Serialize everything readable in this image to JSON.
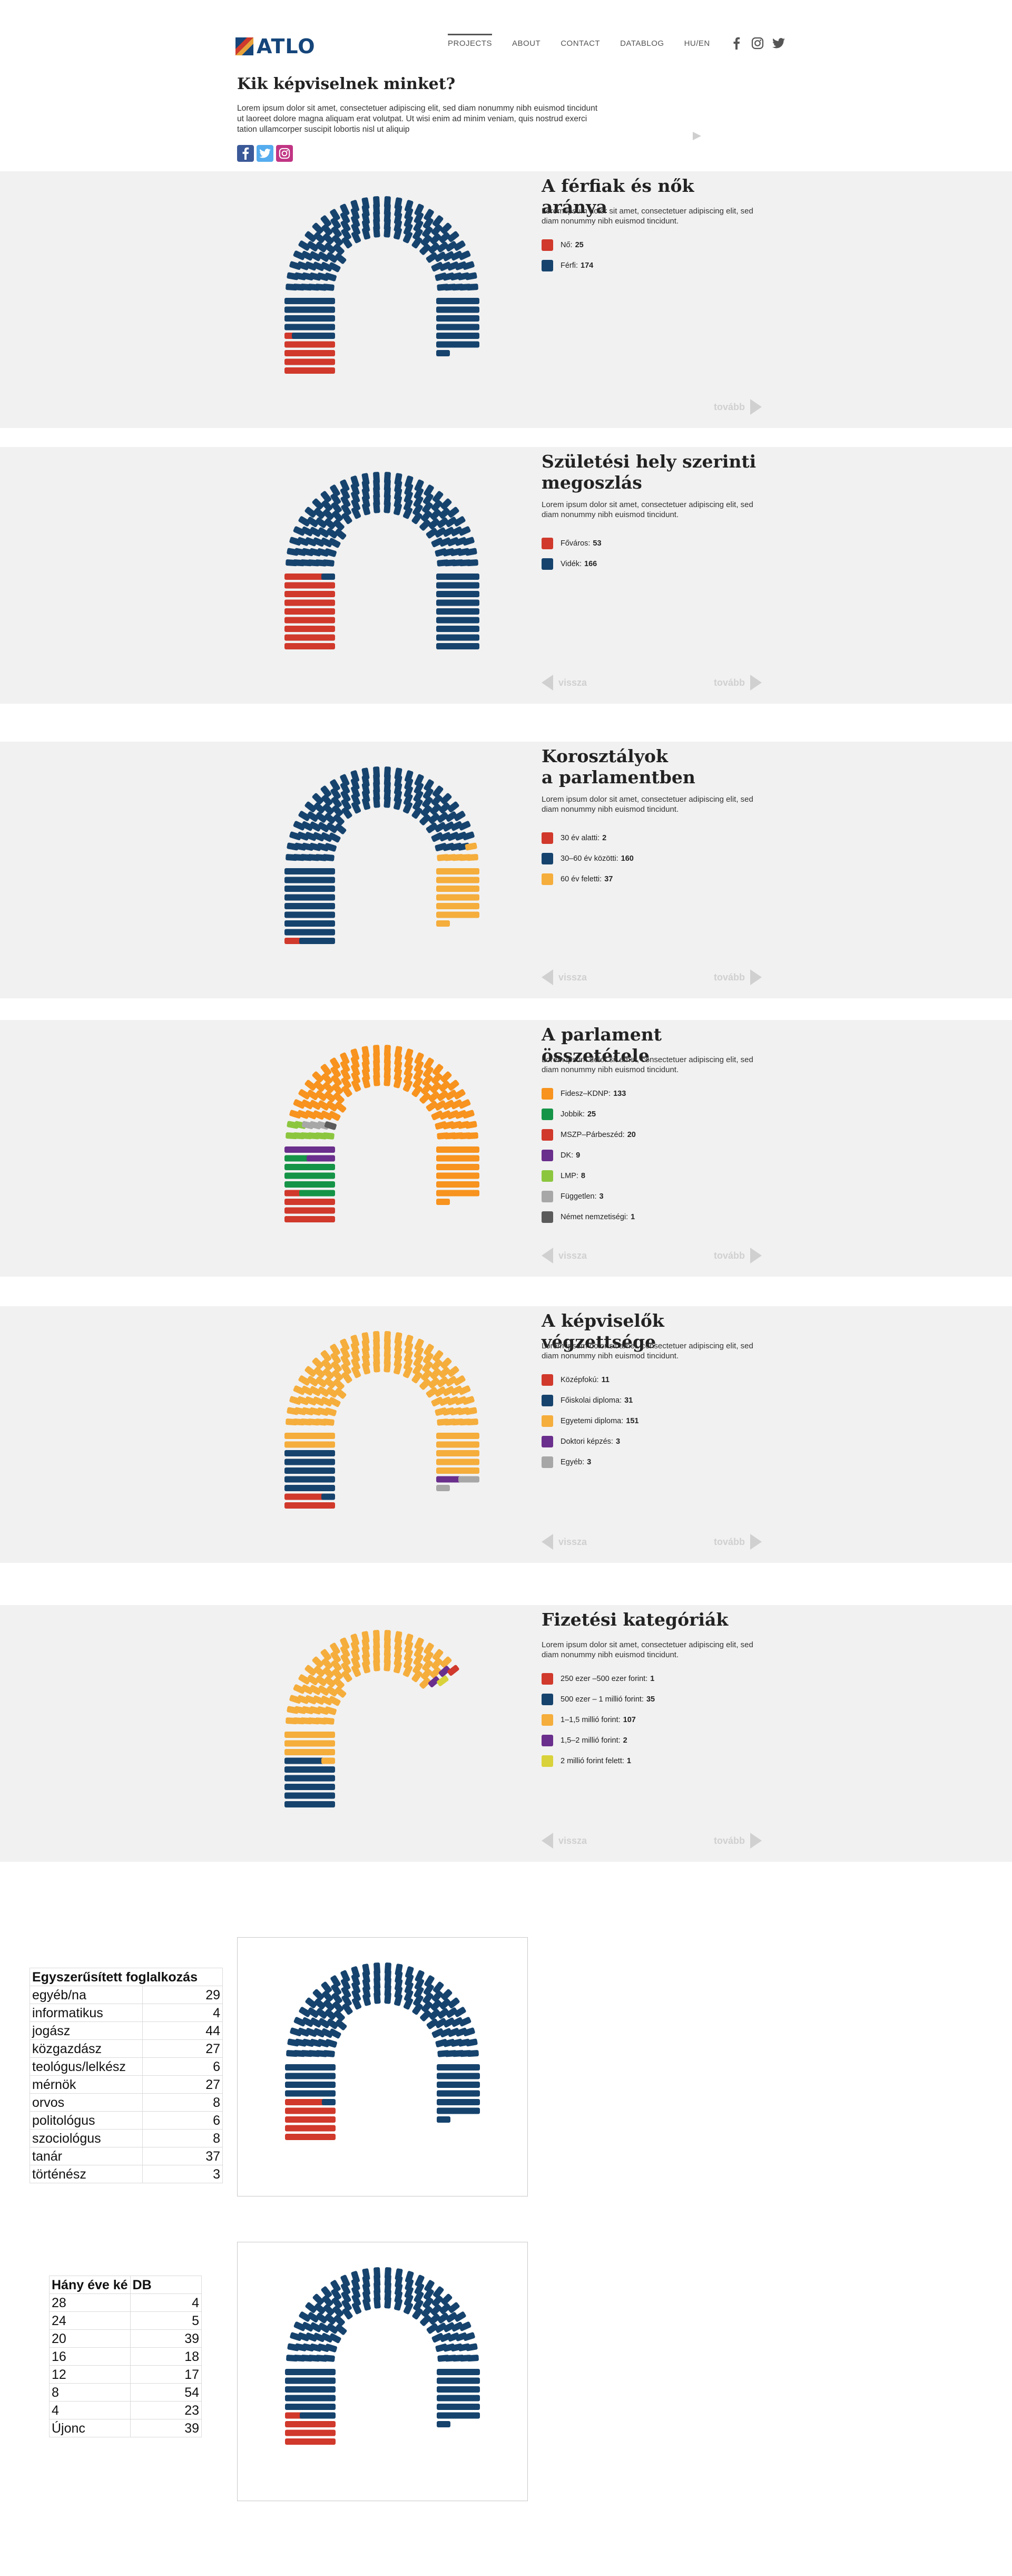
{
  "header": {
    "logo_text": "ATLO",
    "nav": [
      {
        "label": "PROJECTS",
        "active": true
      },
      {
        "label": "ABOUT",
        "active": false
      },
      {
        "label": "CONTACT",
        "active": false
      },
      {
        "label": "DATABLOG",
        "active": false
      },
      {
        "label": "HU/EN",
        "active": false
      }
    ],
    "social_icons": [
      "facebook-icon",
      "instagram-icon",
      "twitter-icon"
    ]
  },
  "page": {
    "title": "Kik képviselnek minket?",
    "intro": "Lorem ipsum dolor sit amet, consectetuer adipiscing elit, sed diam nonummy nibh euismod tincidunt ut laoreet dolore magna aliquam erat volutpat. Ut wisi enim ad minim veniam, quis nostrud exerci tation ullamcorper suscipit lobortis nisl ut aliquip",
    "share_icons": [
      "facebook-share-icon",
      "twitter-share-icon",
      "instagram-share-icon"
    ]
  },
  "sections": [
    {
      "title": "A férfiak és nők aránya",
      "description": "Lorem ipsum dolor sit amet, consectetuer adipiscing elit, sed diam nonummy nibh euismod tincidunt.",
      "next_label": "tovább",
      "legend": [
        {
          "label": "Nő:",
          "value": "25",
          "color": "#d0392b"
        },
        {
          "label": "Férfi:",
          "value": "174",
          "color": "#16436d"
        }
      ]
    },
    {
      "title": "Születési hely szerinti\nmegoszlás",
      "description": "Lorem ipsum dolor sit amet, consectetuer adipiscing elit, sed diam nonummy nibh euismod tincidunt.",
      "prev_label": "vissza",
      "next_label": "tovább",
      "legend": [
        {
          "label": "Főváros:",
          "value": "53",
          "color": "#d0392b"
        },
        {
          "label": "Vidék:",
          "value": "166",
          "color": "#16436d"
        }
      ]
    },
    {
      "title": "Korosztályok\na parlamentben",
      "description": "Lorem ipsum dolor sit amet, consectetuer adipiscing elit, sed diam nonummy nibh euismod tincidunt.",
      "prev_label": "vissza",
      "next_label": "tovább",
      "legend": [
        {
          "label": "30 év alatti:",
          "value": "2",
          "color": "#d0392b"
        },
        {
          "label": "30–60 év közötti:",
          "value": "160",
          "color": "#16436d"
        },
        {
          "label": "60 év feletti:",
          "value": "37",
          "color": "#f5ad3c"
        }
      ]
    },
    {
      "title": "A parlament összetétele",
      "description": "Lorem ipsum dolor sit amet, consectetuer adipiscing elit, sed diam nonummy nibh euismod tincidunt.",
      "prev_label": "vissza",
      "next_label": "tovább",
      "legend": [
        {
          "label": "Fidesz–KDNP:",
          "value": "133",
          "color": "#f7931e"
        },
        {
          "label": "Jobbik:",
          "value": "25",
          "color": "#159447"
        },
        {
          "label": "MSZP–Párbeszéd:",
          "value": "20",
          "color": "#d0392b"
        },
        {
          "label": "DK:",
          "value": "9",
          "color": "#6a2e8c"
        },
        {
          "label": "LMP:",
          "value": "8",
          "color": "#8cc63f"
        },
        {
          "label": "Független:",
          "value": "3",
          "color": "#a7a7a7"
        },
        {
          "label": "Német nemzetiségi:",
          "value": "1",
          "color": "#5b5b5b"
        }
      ]
    },
    {
      "title": "A képviselők végzettsége",
      "description": "Lorem ipsum dolor sit amet, consectetuer adipiscing elit, sed diam nonummy nibh euismod tincidunt.",
      "prev_label": "vissza",
      "next_label": "tovább",
      "legend": [
        {
          "label": "Középfokú:",
          "value": "11",
          "color": "#d0392b"
        },
        {
          "label": "Főiskolai diploma:",
          "value": "31",
          "color": "#16436d"
        },
        {
          "label": "Egyetemi diploma:",
          "value": "151",
          "color": "#f5ad3c"
        },
        {
          "label": "Doktori képzés:",
          "value": "3",
          "color": "#6a2e8c"
        },
        {
          "label": "Egyéb:",
          "value": "3",
          "color": "#a7a7a7"
        }
      ]
    },
    {
      "title": "Fizetési kategóriák",
      "description": "Lorem ipsum dolor sit amet, consectetuer adipiscing elit, sed diam nonummy nibh euismod tincidunt.",
      "prev_label": "vissza",
      "next_label": "tovább",
      "legend": [
        {
          "label": "250 ezer –500 ezer forint:",
          "value": "1",
          "color": "#d0392b"
        },
        {
          "label": "500 ezer – 1 millió forint:",
          "value": "35",
          "color": "#16436d"
        },
        {
          "label": "1–1,5 millió forint:",
          "value": "107",
          "color": "#f5ad3c"
        },
        {
          "label": "1,5–2 millió forint:",
          "value": "2",
          "color": "#6a2e8c"
        },
        {
          "label": "2 millió forint felett:",
          "value": "1",
          "color": "#d9d23a"
        }
      ]
    }
  ],
  "chart_data": [
    {
      "type": "parliament",
      "series": [
        {
          "name": "Nő",
          "value": 25,
          "color": "#d0392b"
        },
        {
          "name": "Férfi",
          "value": 174,
          "color": "#16436d"
        }
      ]
    },
    {
      "type": "parliament",
      "series": [
        {
          "name": "Főváros",
          "value": 53,
          "color": "#d0392b"
        },
        {
          "name": "Vidék",
          "value": 166,
          "color": "#16436d"
        }
      ]
    },
    {
      "type": "parliament",
      "series": [
        {
          "name": "30 év alatti",
          "value": 2,
          "color": "#d0392b"
        },
        {
          "name": "30–60 év közötti",
          "value": 160,
          "color": "#16436d"
        },
        {
          "name": "60 év feletti",
          "value": 37,
          "color": "#f5ad3c"
        }
      ]
    },
    {
      "type": "parliament",
      "series": [
        {
          "name": "MSZP–Párbeszéd",
          "value": 20,
          "color": "#d0392b"
        },
        {
          "name": "Jobbik",
          "value": 25,
          "color": "#159447"
        },
        {
          "name": "DK",
          "value": 9,
          "color": "#6a2e8c"
        },
        {
          "name": "LMP",
          "value": 8,
          "color": "#8cc63f"
        },
        {
          "name": "Független",
          "value": 3,
          "color": "#a7a7a7"
        },
        {
          "name": "Német nemzetiségi",
          "value": 1,
          "color": "#5b5b5b"
        },
        {
          "name": "Fidesz–KDNP",
          "value": 133,
          "color": "#f7931e"
        }
      ]
    },
    {
      "type": "parliament",
      "series": [
        {
          "name": "Középfokú",
          "value": 11,
          "color": "#d0392b"
        },
        {
          "name": "Főiskolai diploma",
          "value": 31,
          "color": "#16436d"
        },
        {
          "name": "Egyetemi diploma",
          "value": 151,
          "color": "#f5ad3c"
        },
        {
          "name": "Doktori képzés",
          "value": 3,
          "color": "#6a2e8c"
        },
        {
          "name": "Egyéb",
          "value": 3,
          "color": "#a7a7a7"
        }
      ]
    },
    {
      "type": "parliament",
      "series": [
        {
          "name": "500 ezer – 1 millió forint",
          "value": 35,
          "color": "#16436d"
        },
        {
          "name": "1–1,5 millió forint",
          "value": 107,
          "color": "#f5ad3c"
        },
        {
          "name": "1,5–2 millió forint",
          "value": 2,
          "color": "#6a2e8c"
        },
        {
          "name": "250 ezer –500 ezer forint",
          "value": 1,
          "color": "#d0392b"
        },
        {
          "name": "2 millió forint felett",
          "value": 1,
          "color": "#d9d23a"
        }
      ]
    },
    {
      "type": "parliament",
      "series": [
        {
          "name": "",
          "value": 29,
          "color": "#d0392b"
        },
        {
          "name": "",
          "value": 170,
          "color": "#16436d"
        }
      ]
    },
    {
      "type": "parliament",
      "series": [
        {
          "name": "",
          "value": 20,
          "color": "#d0392b"
        },
        {
          "name": "",
          "value": 179,
          "color": "#16436d"
        }
      ]
    },
    {
      "type": "table",
      "title": "Egyszerűsített foglalkozás",
      "rows": [
        [
          "egyéb/na",
          "29"
        ],
        [
          "informatikus",
          "4"
        ],
        [
          "jogász",
          "44"
        ],
        [
          "közgazdász",
          "27"
        ],
        [
          "teológus/lelkész",
          "6"
        ],
        [
          "mérnök",
          "27"
        ],
        [
          "orvos",
          "8"
        ],
        [
          "politológus",
          "6"
        ],
        [
          "szociológus",
          "8"
        ],
        [
          "tanár",
          "37"
        ],
        [
          "történész",
          "3"
        ]
      ]
    },
    {
      "type": "table",
      "columns": [
        "Hány éve ké",
        "DB"
      ],
      "rows": [
        [
          "28",
          "4"
        ],
        [
          "24",
          "5"
        ],
        [
          "20",
          "39"
        ],
        [
          "16",
          "18"
        ],
        [
          "12",
          "17"
        ],
        [
          "8",
          "54"
        ],
        [
          "4",
          "23"
        ],
        [
          "Újonc",
          "39"
        ]
      ]
    }
  ]
}
